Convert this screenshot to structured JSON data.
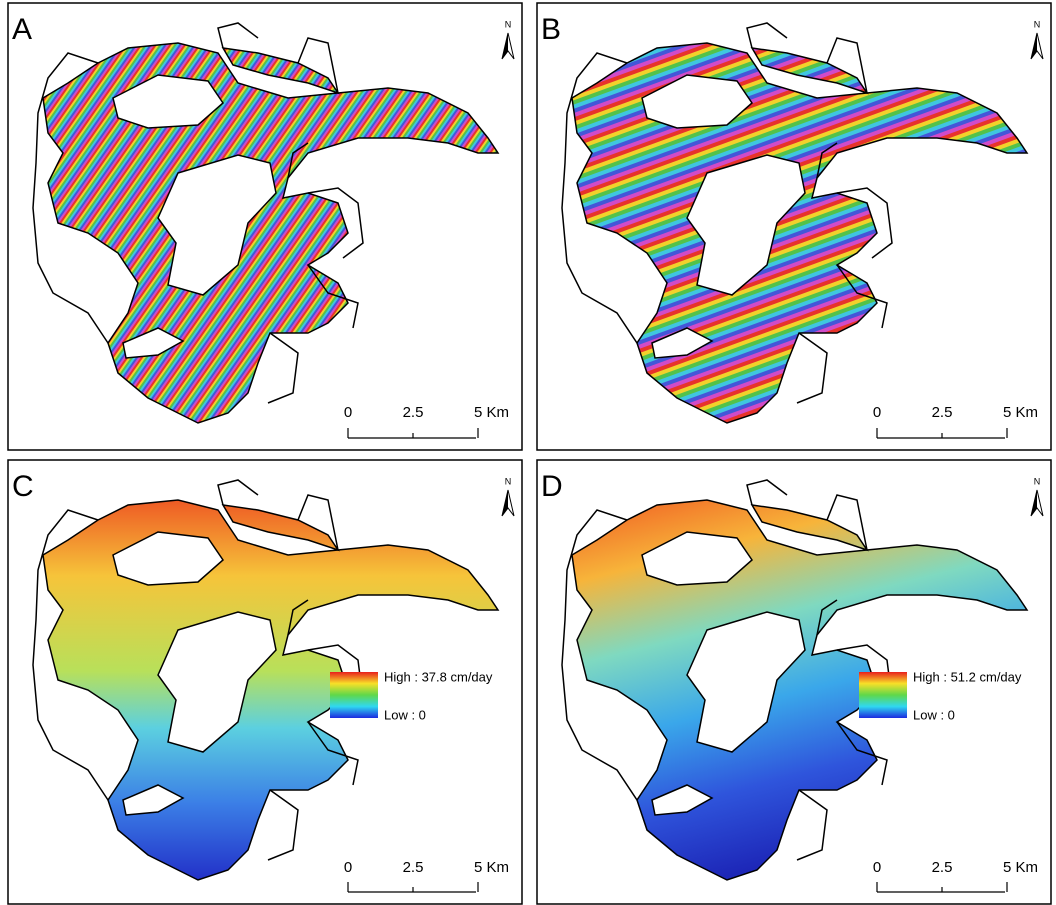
{
  "panels": [
    {
      "label": "A",
      "north": "N",
      "scale": [
        "0",
        "2.5",
        "5 Km"
      ]
    },
    {
      "label": "B",
      "north": "N",
      "scale": [
        "0",
        "2.5",
        "5 Km"
      ]
    },
    {
      "label": "C",
      "north": "N",
      "scale": [
        "0",
        "2.5",
        "5 Km"
      ],
      "legend": {
        "high": "High : 37.8 cm/day",
        "low": "Low : 0"
      }
    },
    {
      "label": "D",
      "north": "N",
      "scale": [
        "0",
        "2.5",
        "5 Km"
      ],
      "legend": {
        "high": "High : 51.2 cm/day",
        "low": "Low : 0"
      }
    }
  ]
}
